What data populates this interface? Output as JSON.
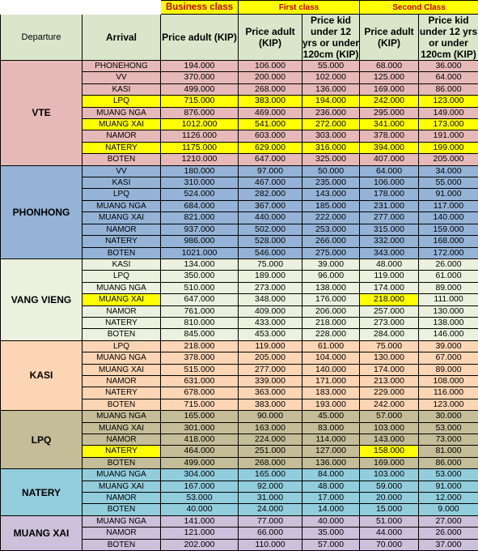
{
  "class_headers": {
    "business": "Business class",
    "first": "First class",
    "second": "Second Class"
  },
  "column_headers": {
    "departure": "Departure",
    "arrival": "Arrival",
    "business_adult": "Price adult (KIP)",
    "first_adult": "Price adult (KIP)",
    "first_kid": "Price kid under 12 yrs or under 120cm (KIP)",
    "second_adult": "Price adult (KIP)",
    "second_kid": "Price kid under 12 yrs or under 120cm (KIP)"
  },
  "colors": {
    "header_green": "#d9e6ca",
    "highlight_yellow": "#ffff00",
    "class_title_red": "#c00000"
  },
  "groups": [
    {
      "departure": "VTE",
      "color": "#e6b9b8",
      "rows": [
        {
          "arrival": "PHONEHONG",
          "values": [
            "194.000",
            "106.000",
            "55.000",
            "68.000",
            "36.000"
          ]
        },
        {
          "arrival": "VV",
          "values": [
            "370.000",
            "200.000",
            "102.000",
            "125.000",
            "64.000"
          ]
        },
        {
          "arrival": "KASI",
          "values": [
            "499.000",
            "268.000",
            "136.000",
            "169.000",
            "86.000"
          ]
        },
        {
          "arrival": "LPQ",
          "values": [
            "715.000",
            "383.000",
            "194.000",
            "242.000",
            "123.000"
          ],
          "highlight": [
            0,
            1,
            2,
            3,
            4,
            5
          ]
        },
        {
          "arrival": "MUANG NGA",
          "values": [
            "876.000",
            "469.000",
            "236.000",
            "295.000",
            "149.000"
          ]
        },
        {
          "arrival": "MUANG XAI",
          "values": [
            "1012.000",
            "541.000",
            "272.000",
            "341.000",
            "173.000"
          ],
          "highlight": [
            0,
            1,
            2,
            3,
            4,
            5
          ]
        },
        {
          "arrival": "NAMOR",
          "values": [
            "1126.000",
            "603.000",
            "303.000",
            "378.000",
            "191.000"
          ]
        },
        {
          "arrival": "NATERY",
          "values": [
            "1175.000",
            "629.000",
            "316.000",
            "394.000",
            "199.000"
          ],
          "highlight": [
            0,
            1,
            2,
            3,
            4,
            5
          ]
        },
        {
          "arrival": "BOTEN",
          "values": [
            "1210.000",
            "647.000",
            "325.000",
            "407.000",
            "205.000"
          ]
        }
      ]
    },
    {
      "departure": "PHONHONG",
      "color": "#95b3d7",
      "rows": [
        {
          "arrival": "VV",
          "values": [
            "180.000",
            "97.000",
            "50.000",
            "64.000",
            "34.000"
          ]
        },
        {
          "arrival": "KASI",
          "values": [
            "310.000",
            "467.000",
            "235.000",
            "106.000",
            "55.000"
          ]
        },
        {
          "arrival": "LPQ",
          "values": [
            "524.000",
            "282.000",
            "143.000",
            "178.000",
            "91.000"
          ]
        },
        {
          "arrival": "MUANG NGA",
          "values": [
            "684.000",
            "367.000",
            "185.000",
            "231.000",
            "117.000"
          ]
        },
        {
          "arrival": "MUANG XAI",
          "values": [
            "821.000",
            "440.000",
            "222.000",
            "277.000",
            "140.000"
          ]
        },
        {
          "arrival": "NAMOR",
          "values": [
            "937.000",
            "502.000",
            "253.000",
            "315.000",
            "159.000"
          ]
        },
        {
          "arrival": "NATERY",
          "values": [
            "986.000",
            "528.000",
            "266.000",
            "332.000",
            "168.000"
          ]
        },
        {
          "arrival": "BOTEN",
          "values": [
            "1021.000",
            "546.000",
            "275.000",
            "343.000",
            "172.000"
          ]
        }
      ]
    },
    {
      "departure": "VANG VIENG",
      "color": "#ebf1de",
      "rows": [
        {
          "arrival": "KASI",
          "values": [
            "134.000",
            "75.000",
            "39.000",
            "48.000",
            "26.000"
          ]
        },
        {
          "arrival": "LPQ",
          "values": [
            "350.000",
            "189.000",
            "96.000",
            "119.000",
            "61.000"
          ]
        },
        {
          "arrival": "MUANG NGA",
          "values": [
            "510.000",
            "273.000",
            "138.000",
            "174.000",
            "89.000"
          ]
        },
        {
          "arrival": "MUANG XAI",
          "values": [
            "647.000",
            "348.000",
            "176.000",
            "218.000",
            "111.000"
          ],
          "highlight": [
            0,
            4
          ]
        },
        {
          "arrival": "NAMOR",
          "values": [
            "761.000",
            "409.000",
            "206.000",
            "257.000",
            "130.000"
          ]
        },
        {
          "arrival": "NATERY",
          "values": [
            "810.000",
            "433.000",
            "218.000",
            "273.000",
            "138.000"
          ]
        },
        {
          "arrival": "BOTEN",
          "values": [
            "845.000",
            "453.000",
            "228.000",
            "284.000",
            "146.000"
          ]
        }
      ]
    },
    {
      "departure": "KASI",
      "color": "#fcd5b4",
      "rows": [
        {
          "arrival": "LPQ",
          "values": [
            "218.000",
            "119.000",
            "61.000",
            "75.000",
            "39.000"
          ]
        },
        {
          "arrival": "MUANG NGA",
          "values": [
            "378.000",
            "205.000",
            "104.000",
            "130.000",
            "67.000"
          ]
        },
        {
          "arrival": "MUANG XAI",
          "values": [
            "515.000",
            "277.000",
            "140.000",
            "174.000",
            "89.000"
          ]
        },
        {
          "arrival": "NAMOR",
          "values": [
            "631.000",
            "339.000",
            "171.000",
            "213.000",
            "108.000"
          ]
        },
        {
          "arrival": "NATERY",
          "values": [
            "678.000",
            "363.000",
            "183.000",
            "229.000",
            "116.000"
          ]
        },
        {
          "arrival": "BOTEN",
          "values": [
            "715.000",
            "383.000",
            "193.000",
            "242.000",
            "123.000"
          ]
        }
      ]
    },
    {
      "departure": "LPQ",
      "color": "#c4bd97",
      "rows": [
        {
          "arrival": "MUANG NGA",
          "values": [
            "165.000",
            "90.000",
            "45.000",
            "57.000",
            "30.000"
          ]
        },
        {
          "arrival": "MUANG XAI",
          "values": [
            "301.000",
            "163.000",
            "83.000",
            "103.000",
            "53.000"
          ]
        },
        {
          "arrival": "NAMOR",
          "values": [
            "418.000",
            "224.000",
            "114.000",
            "143.000",
            "73.000"
          ]
        },
        {
          "arrival": "NATERY",
          "values": [
            "464.000",
            "251.000",
            "127.000",
            "158.000",
            "81.000"
          ],
          "highlight": [
            0,
            4
          ]
        },
        {
          "arrival": "BOTEN",
          "values": [
            "499.000",
            "268.000",
            "136.000",
            "169.000",
            "86.000"
          ]
        }
      ]
    },
    {
      "departure": "NATERY",
      "color": "#92cddc",
      "rows": [
        {
          "arrival": "MUANG NGA",
          "values": [
            "304.000",
            "165.000",
            "84.000",
            "103.000",
            "53.000"
          ]
        },
        {
          "arrival": "MUANG XAI",
          "values": [
            "167.000",
            "92.000",
            "48.000",
            "59.000",
            "91.000"
          ]
        },
        {
          "arrival": "NAMOR",
          "values": [
            "53.000",
            "31.000",
            "17.000",
            "20.000",
            "12.000"
          ]
        },
        {
          "arrival": "BOTEN",
          "values": [
            "40.000",
            "24.000",
            "14.000",
            "15.000",
            "9.000"
          ]
        }
      ]
    },
    {
      "departure": "MUANG XAI",
      "color": "#ccc0da",
      "rows": [
        {
          "arrival": "MUANG NGA",
          "values": [
            "141.000",
            "77.000",
            "40.000",
            "51.000",
            "27.000"
          ]
        },
        {
          "arrival": "NAMOR",
          "values": [
            "121.000",
            "66.000",
            "35.000",
            "44.000",
            "26.000"
          ]
        },
        {
          "arrival": "BOTEN",
          "values": [
            "202.000",
            "110.000",
            "57.000",
            "70.000",
            "37.000"
          ]
        }
      ]
    }
  ]
}
